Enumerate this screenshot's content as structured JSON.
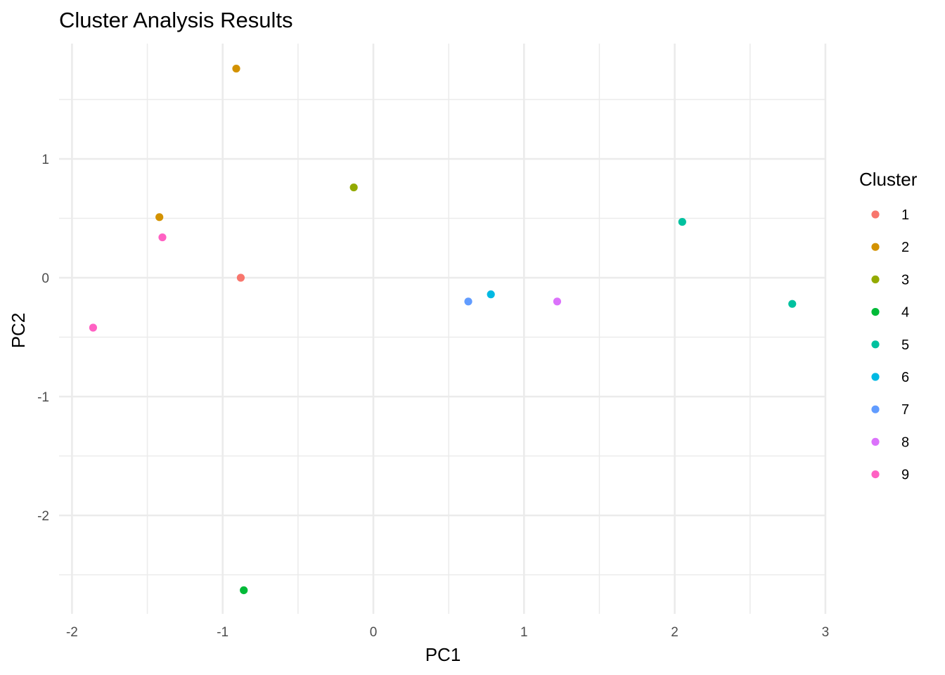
{
  "chart_data": {
    "type": "scatter",
    "title": "Cluster Analysis Results",
    "xlabel": "PC1",
    "ylabel": "PC2",
    "xlim": [
      -2.0,
      3.0
    ],
    "ylim": [
      -2.8,
      1.95
    ],
    "xticks": [
      -2,
      -1,
      0,
      1,
      2,
      3
    ],
    "yticks": [
      -2,
      -1,
      0,
      1
    ],
    "grid": true,
    "legend": {
      "title": "Cluster",
      "placement": "right",
      "items": [
        {
          "label": "1",
          "color": "#F8766D"
        },
        {
          "label": "2",
          "color": "#D39200"
        },
        {
          "label": "3",
          "color": "#93AA00"
        },
        {
          "label": "4",
          "color": "#00BA38"
        },
        {
          "label": "5",
          "color": "#00C19F"
        },
        {
          "label": "6",
          "color": "#00B9E3"
        },
        {
          "label": "7",
          "color": "#619CFF"
        },
        {
          "label": "8",
          "color": "#DB72FB"
        },
        {
          "label": "9",
          "color": "#FF61C3"
        }
      ]
    },
    "points": [
      {
        "x": -0.88,
        "y": 0.0,
        "cluster": "1"
      },
      {
        "x": -0.91,
        "y": 1.76,
        "cluster": "2"
      },
      {
        "x": -1.42,
        "y": 0.51,
        "cluster": "2"
      },
      {
        "x": -0.13,
        "y": 0.76,
        "cluster": "3"
      },
      {
        "x": -0.86,
        "y": -2.63,
        "cluster": "4"
      },
      {
        "x": 2.05,
        "y": 0.47,
        "cluster": "5"
      },
      {
        "x": 2.78,
        "y": -0.22,
        "cluster": "5"
      },
      {
        "x": 0.78,
        "y": -0.14,
        "cluster": "6"
      },
      {
        "x": 0.63,
        "y": -0.2,
        "cluster": "7"
      },
      {
        "x": 1.22,
        "y": -0.2,
        "cluster": "8"
      },
      {
        "x": -1.4,
        "y": 0.34,
        "cluster": "9"
      },
      {
        "x": -1.86,
        "y": -0.42,
        "cluster": "9"
      }
    ]
  }
}
